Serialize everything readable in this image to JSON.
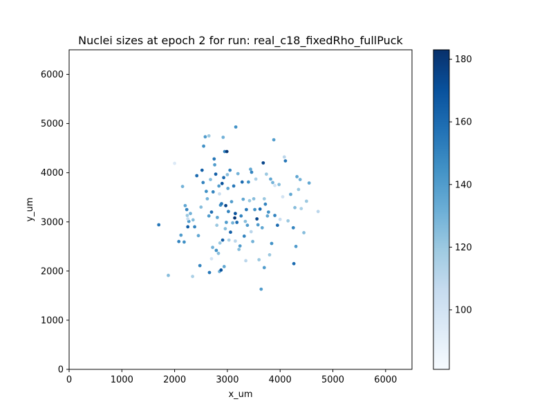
{
  "chart_data": {
    "type": "scatter",
    "title": "Nuclei sizes at epoch 2 for run: real_c18_fixedRho_fullPuck",
    "xlabel": "x_um",
    "ylabel": "y_um",
    "xlim": [
      0,
      6500
    ],
    "ylim": [
      0,
      6500
    ],
    "xticks": [
      "0",
      "1000",
      "2000",
      "3000",
      "4000",
      "5000",
      "6000"
    ],
    "yticks": [
      "0",
      "1000",
      "2000",
      "3000",
      "4000",
      "5000",
      "6000"
    ],
    "colormap": "Blues",
    "colorbar": {
      "range": [
        81,
        183
      ],
      "ticks": [
        "100",
        "120",
        "140",
        "160",
        "180"
      ],
      "low_color": "#f7fbff",
      "high_color": "#08306b"
    },
    "grid": false,
    "points": [
      [
        1700,
        2940,
        155
      ],
      [
        1880,
        1910,
        125
      ],
      [
        2000,
        4190,
        95
      ],
      [
        2080,
        2600,
        150
      ],
      [
        2120,
        2730,
        140
      ],
      [
        2150,
        3720,
        130
      ],
      [
        2180,
        2590,
        145
      ],
      [
        2200,
        3330,
        135
      ],
      [
        2230,
        3250,
        150
      ],
      [
        2240,
        3130,
        120
      ],
      [
        2250,
        2900,
        165
      ],
      [
        2270,
        3010,
        140
      ],
      [
        2300,
        3170,
        130
      ],
      [
        2340,
        1890,
        115
      ],
      [
        2350,
        3040,
        125
      ],
      [
        2380,
        2900,
        150
      ],
      [
        2420,
        3940,
        160
      ],
      [
        2450,
        2720,
        135
      ],
      [
        2480,
        2110,
        150
      ],
      [
        2500,
        3300,
        125
      ],
      [
        2520,
        4050,
        165
      ],
      [
        2540,
        3800,
        150
      ],
      [
        2550,
        4540,
        145
      ],
      [
        2580,
        4730,
        140
      ],
      [
        2600,
        3620,
        145
      ],
      [
        2620,
        3470,
        130
      ],
      [
        2650,
        4750,
        120
      ],
      [
        2660,
        1970,
        155
      ],
      [
        2680,
        3860,
        125
      ],
      [
        2700,
        3200,
        160
      ],
      [
        2720,
        2480,
        130
      ],
      [
        2730,
        3610,
        150
      ],
      [
        2750,
        4280,
        155
      ],
      [
        2760,
        4160,
        140
      ],
      [
        2780,
        3970,
        165
      ],
      [
        2790,
        2420,
        145
      ],
      [
        2800,
        2930,
        120
      ],
      [
        2810,
        3090,
        135
      ],
      [
        2830,
        2360,
        125
      ],
      [
        2840,
        3730,
        140
      ],
      [
        2850,
        1990,
        130
      ],
      [
        2860,
        2570,
        120
      ],
      [
        2870,
        3340,
        145
      ],
      [
        2880,
        2020,
        170
      ],
      [
        2890,
        3370,
        155
      ],
      [
        2900,
        3780,
        170
      ],
      [
        2910,
        2630,
        165
      ],
      [
        2920,
        4720,
        130
      ],
      [
        2930,
        3900,
        160
      ],
      [
        2940,
        2090,
        135
      ],
      [
        2950,
        4430,
        150
      ],
      [
        2960,
        2860,
        125
      ],
      [
        2970,
        3330,
        175
      ],
      [
        2980,
        2990,
        140
      ],
      [
        2990,
        4430,
        180
      ],
      [
        3000,
        3960,
        125
      ],
      [
        3010,
        3680,
        135
      ],
      [
        3020,
        3210,
        150
      ],
      [
        3030,
        2630,
        115
      ],
      [
        3050,
        4050,
        150
      ],
      [
        3060,
        2790,
        165
      ],
      [
        3080,
        3410,
        140
      ],
      [
        3100,
        2980,
        130
      ],
      [
        3120,
        3730,
        155
      ],
      [
        3140,
        3080,
        180
      ],
      [
        3150,
        3170,
        170
      ],
      [
        3160,
        4930,
        145
      ],
      [
        3180,
        2990,
        160
      ],
      [
        3200,
        3980,
        130
      ],
      [
        3220,
        2440,
        125
      ],
      [
        3240,
        2510,
        140
      ],
      [
        3260,
        3120,
        150
      ],
      [
        3280,
        3810,
        160
      ],
      [
        3300,
        3460,
        135
      ],
      [
        3320,
        2710,
        150
      ],
      [
        3340,
        3010,
        125
      ],
      [
        3360,
        3250,
        155
      ],
      [
        3380,
        2930,
        140
      ],
      [
        3400,
        3810,
        145
      ],
      [
        3420,
        3430,
        120
      ],
      [
        3440,
        4070,
        135
      ],
      [
        3460,
        4010,
        150
      ],
      [
        3480,
        2600,
        130
      ],
      [
        3500,
        3470,
        125
      ],
      [
        3520,
        3250,
        145
      ],
      [
        3540,
        3870,
        115
      ],
      [
        3560,
        3060,
        175
      ],
      [
        3580,
        2940,
        140
      ],
      [
        3600,
        2230,
        120
      ],
      [
        3620,
        3260,
        160
      ],
      [
        3640,
        1630,
        140
      ],
      [
        3660,
        2880,
        135
      ],
      [
        3680,
        4200,
        175
      ],
      [
        3700,
        2070,
        140
      ],
      [
        3720,
        3360,
        150
      ],
      [
        3740,
        3970,
        120
      ],
      [
        3760,
        3120,
        135
      ],
      [
        3780,
        3200,
        145
      ],
      [
        3800,
        2330,
        120
      ],
      [
        3820,
        3870,
        135
      ],
      [
        3840,
        2560,
        145
      ],
      [
        3860,
        3800,
        130
      ],
      [
        3880,
        4670,
        140
      ],
      [
        3900,
        3130,
        150
      ],
      [
        3950,
        2930,
        160
      ],
      [
        3980,
        3760,
        125
      ],
      [
        4050,
        3510,
        100
      ],
      [
        4080,
        4320,
        110
      ],
      [
        4100,
        4240,
        155
      ],
      [
        4150,
        3020,
        120
      ],
      [
        4200,
        3560,
        135
      ],
      [
        4250,
        2880,
        150
      ],
      [
        4260,
        2150,
        160
      ],
      [
        4280,
        3290,
        125
      ],
      [
        4300,
        2500,
        140
      ],
      [
        4320,
        3920,
        135
      ],
      [
        4350,
        3660,
        120
      ],
      [
        4380,
        3860,
        130
      ],
      [
        4400,
        3270,
        115
      ],
      [
        4450,
        2780,
        125
      ],
      [
        4500,
        3420,
        120
      ],
      [
        4550,
        3790,
        135
      ],
      [
        4720,
        3210,
        110
      ],
      [
        2650,
        3120,
        140
      ],
      [
        3700,
        3470,
        120
      ],
      [
        3350,
        2210,
        110
      ],
      [
        2250,
        3060,
        105
      ],
      [
        3900,
        3740,
        100
      ],
      [
        3150,
        2610,
        110
      ],
      [
        2850,
        3570,
        105
      ],
      [
        3450,
        2800,
        110
      ],
      [
        4000,
        3050,
        105
      ],
      [
        2700,
        2250,
        100
      ]
    ]
  }
}
